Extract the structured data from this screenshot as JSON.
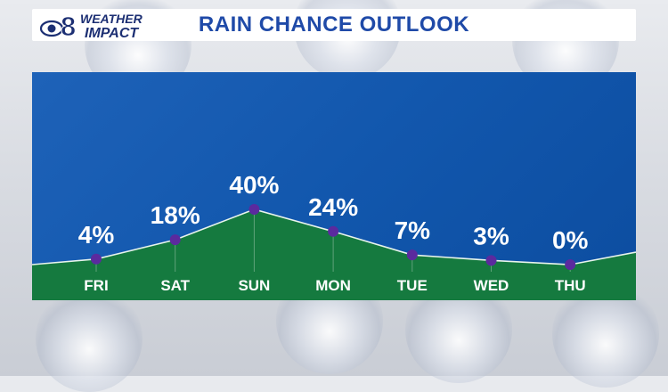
{
  "header": {
    "logo_number": "8",
    "logo_line1": "WEATHER",
    "logo_line2": "IMPACT",
    "title": "RAIN CHANCE OUTLOOK"
  },
  "colors": {
    "title": "#1f4aa8",
    "panel": "#1257ad",
    "fill": "#157a3f",
    "marker": "#5b2a9e",
    "line": "#e8f4ec"
  },
  "chart_data": {
    "type": "area",
    "title": "RAIN CHANCE OUTLOOK",
    "categories": [
      "FRI",
      "SAT",
      "SUN",
      "MON",
      "TUE",
      "WED",
      "THU"
    ],
    "values": [
      4,
      18,
      40,
      24,
      7,
      3,
      0
    ],
    "data_labels": [
      "4%",
      "18%",
      "40%",
      "24%",
      "7%",
      "3%",
      "0%"
    ],
    "unit": "%",
    "grid": false,
    "legend": "none"
  }
}
